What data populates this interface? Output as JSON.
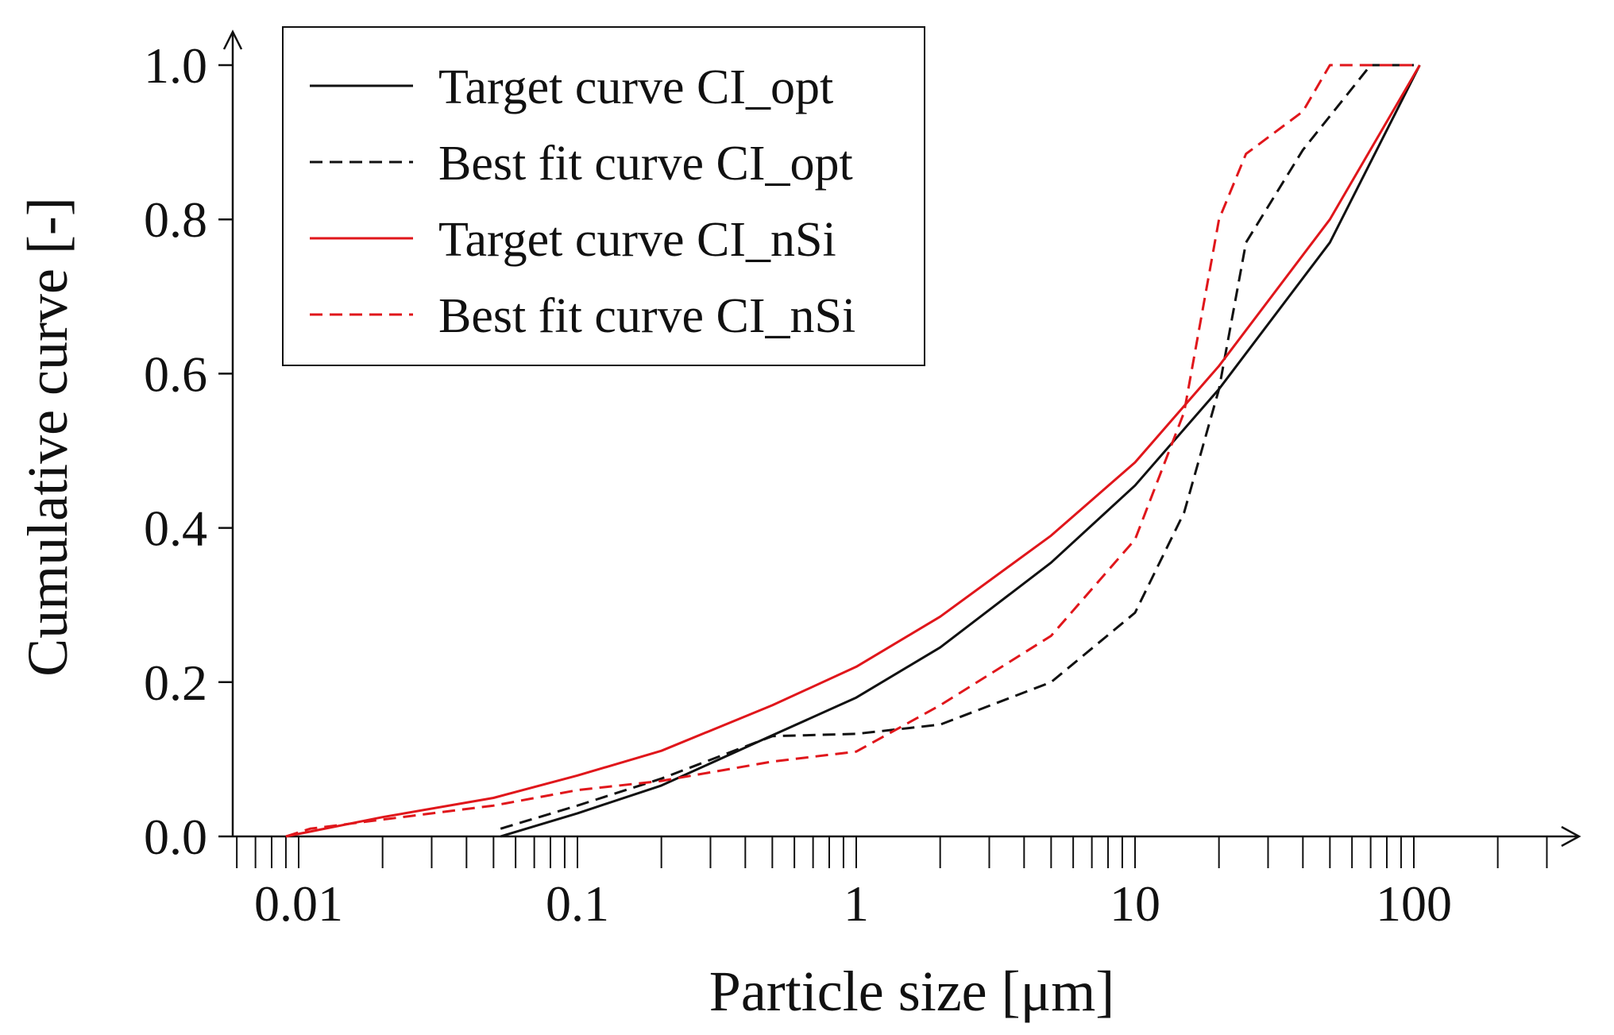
{
  "colors": {
    "black": "#111111",
    "red": "#e0161b",
    "background": "#ffffff"
  },
  "chart_data": {
    "type": "line",
    "title": "",
    "xlabel": "Particle size [μm]",
    "ylabel": "Cumulative curve [-]",
    "xscale": "log",
    "xlim": [
      0.006,
      350
    ],
    "ylim": [
      0,
      1
    ],
    "x_ticks": [
      0.01,
      0.1,
      1,
      10,
      100
    ],
    "x_tick_labels": [
      "0.01",
      "0.1",
      "1",
      "10",
      "100"
    ],
    "y_ticks": [
      0,
      0.2,
      0.4,
      0.6,
      0.8,
      1.0
    ],
    "y_tick_labels": [
      "0.0",
      "0.2",
      "0.4",
      "0.6",
      "0.8",
      "1.0"
    ],
    "grid": false,
    "legend_position": "top-left",
    "series": [
      {
        "name": "Target curve CI_opt",
        "color": "#111111",
        "dash": "solid",
        "x": [
          0.053,
          0.1,
          0.2,
          0.5,
          1,
          2,
          5,
          10,
          20,
          50,
          105
        ],
        "y": [
          0.0,
          0.03,
          0.066,
          0.131,
          0.18,
          0.245,
          0.355,
          0.455,
          0.58,
          0.77,
          1.0
        ]
      },
      {
        "name": "Best fit curve CI_opt",
        "color": "#111111",
        "dash": "dashed",
        "x": [
          0.053,
          0.1,
          0.2,
          0.5,
          1,
          2,
          5,
          10,
          15,
          20,
          25,
          40,
          70,
          100
        ],
        "y": [
          0.01,
          0.04,
          0.075,
          0.13,
          0.133,
          0.145,
          0.2,
          0.29,
          0.42,
          0.58,
          0.77,
          0.89,
          1.0,
          1.0
        ]
      },
      {
        "name": "Target curve CI_nSi",
        "color": "#e0161b",
        "dash": "solid",
        "x": [
          0.009,
          0.02,
          0.05,
          0.1,
          0.2,
          0.5,
          1,
          2,
          5,
          10,
          20,
          50,
          105
        ],
        "y": [
          0.0,
          0.025,
          0.05,
          0.079,
          0.111,
          0.17,
          0.22,
          0.285,
          0.39,
          0.485,
          0.61,
          0.8,
          1.0
        ]
      },
      {
        "name": "Best fit curve CI_nSi",
        "color": "#e0161b",
        "dash": "dashed",
        "x": [
          0.009,
          0.011,
          0.05,
          0.1,
          0.2,
          0.5,
          1,
          2,
          5,
          10,
          15,
          20,
          25,
          40,
          50,
          100
        ],
        "y": [
          0.0,
          0.01,
          0.04,
          0.06,
          0.072,
          0.097,
          0.11,
          0.17,
          0.26,
          0.385,
          0.55,
          0.8,
          0.885,
          0.94,
          1.0,
          1.0
        ]
      }
    ]
  }
}
